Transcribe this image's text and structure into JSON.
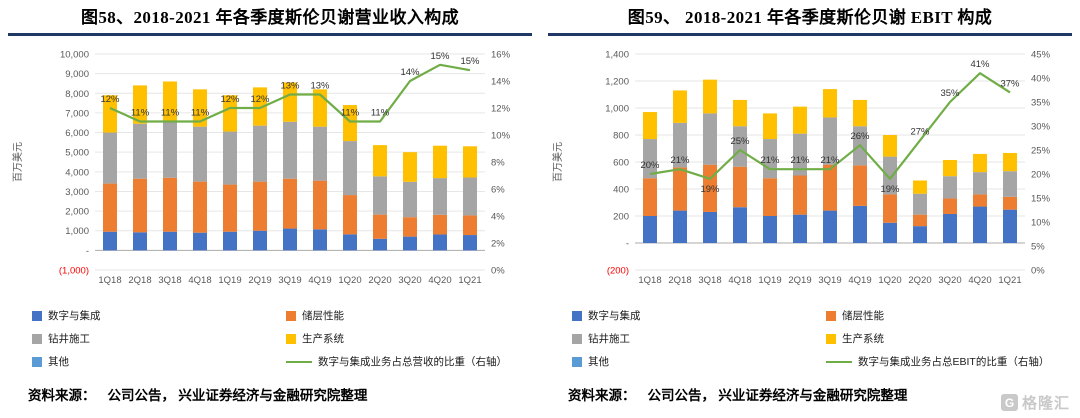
{
  "page": {
    "background": "#FFFFFF",
    "accent_rule_color": "#1F3864",
    "negative_color": "#FF0000",
    "watermark": {
      "icon_letter": "G",
      "text": "格隆汇"
    }
  },
  "sources": [
    {
      "label": "资料来源：",
      "text": "公司公告， 兴业证券经济与金融研究院整理"
    },
    {
      "label": "资料来源：",
      "text": "公司公告， 兴业证券经济与金融研究院整理"
    }
  ],
  "chart_data": [
    {
      "type": "bar",
      "subtype": "stacked-bars-with-line",
      "title": "图58、2018-2021 年各季度斯伦贝谢营业收入构成",
      "ylabel": "百万美元",
      "categories": [
        "1Q18",
        "2Q18",
        "3Q18",
        "4Q18",
        "1Q19",
        "2Q19",
        "3Q19",
        "4Q19",
        "1Q20",
        "2Q20",
        "3Q20",
        "4Q20",
        "1Q21"
      ],
      "series": [
        {
          "name": "数字与集成",
          "color": "#4472C4",
          "values": [
            950,
            920,
            950,
            900,
            950,
            1000,
            1110,
            1070,
            816,
            590,
            700,
            810,
            780
          ]
        },
        {
          "name": "储层性能",
          "color": "#ED7D31",
          "values": [
            2450,
            2730,
            2750,
            2600,
            2400,
            2500,
            2540,
            2480,
            2000,
            1230,
            990,
            1000,
            1000
          ]
        },
        {
          "name": "钻井施工",
          "color": "#A5A5A5",
          "values": [
            2600,
            2800,
            2900,
            2800,
            2700,
            2850,
            2900,
            2750,
            2750,
            1950,
            1800,
            1870,
            1930
          ]
        },
        {
          "name": "生产系统",
          "color": "#FFC000",
          "values": [
            1900,
            1950,
            2000,
            1900,
            1850,
            1950,
            2000,
            1900,
            1834,
            1590,
            1510,
            1650,
            1590
          ]
        }
      ],
      "line": {
        "name": "数字与集成业务占总营收的比重（右轴）",
        "color": "#70AD47",
        "axis": "right",
        "values": [
          12,
          11,
          11,
          11,
          12,
          12,
          13,
          13,
          11,
          11,
          14,
          15.2,
          14.8
        ],
        "labels": [
          "12%",
          "11%",
          "11%",
          "11%",
          "12%",
          "12%",
          "13%",
          "13%",
          "11%",
          "11%",
          "14%",
          "15%",
          "15%"
        ],
        "labels_below": []
      },
      "legend": [
        {
          "label": "数字与集成",
          "color": "#4472C4",
          "type": "square"
        },
        {
          "label": "储层性能",
          "color": "#ED7D31",
          "type": "square"
        },
        {
          "label": "钻井施工",
          "color": "#A5A5A5",
          "type": "square"
        },
        {
          "label": "生产系统",
          "color": "#FFC000",
          "type": "square"
        },
        {
          "label": "其他",
          "color": "#5B9BD5",
          "type": "square"
        },
        {
          "label": "数字与集成业务占总营收的比重（右轴）",
          "color": "#70AD47",
          "type": "line"
        }
      ],
      "left_axis": {
        "min": -1000,
        "max": 10000,
        "step": 1000,
        "tick_labels": [
          "10,000",
          "9,000",
          "8,000",
          "7,000",
          "6,000",
          "5,000",
          "4,000",
          "3,000",
          "2,000",
          "1,000",
          "-",
          "(1,000)"
        ]
      },
      "right_axis": {
        "min": 0,
        "max": 16,
        "step": 2,
        "tick_labels": [
          "16%",
          "14%",
          "12%",
          "10%",
          "8%",
          "6%",
          "4%",
          "2%",
          "0%"
        ]
      },
      "grid": true,
      "legend_position": "bottom"
    },
    {
      "type": "bar",
      "subtype": "stacked-bars-with-line",
      "title": "图59、 2018-2021 年各季度斯伦贝谢 EBIT 构成",
      "ylabel": "百万美元",
      "categories": [
        "1Q18",
        "2Q18",
        "3Q18",
        "4Q18",
        "1Q19",
        "2Q19",
        "3Q19",
        "4Q19",
        "1Q20",
        "2Q20",
        "3Q20",
        "4Q20",
        "1Q21"
      ],
      "series": [
        {
          "name": "数字与集成",
          "color": "#4472C4",
          "values": [
            200,
            240,
            230,
            265,
            200,
            210,
            240,
            275,
            150,
            125,
            215,
            270,
            247
          ]
        },
        {
          "name": "储层性能",
          "color": "#ED7D31",
          "values": [
            280,
            320,
            350,
            300,
            280,
            290,
            340,
            300,
            210,
            85,
            115,
            90,
            95
          ]
        },
        {
          "name": "钻井施工",
          "color": "#A5A5A5",
          "values": [
            290,
            330,
            380,
            300,
            290,
            310,
            350,
            290,
            280,
            155,
            165,
            165,
            190
          ]
        },
        {
          "name": "生产系统",
          "color": "#FFC000",
          "values": [
            200,
            240,
            250,
            195,
            190,
            200,
            210,
            195,
            160,
            98,
            120,
            135,
            135
          ]
        }
      ],
      "line": {
        "name": "数字与集成业务占总EBIT的比重（右轴）",
        "color": "#70AD47",
        "axis": "right",
        "values": [
          20,
          21,
          19,
          25,
          21,
          21,
          21,
          26,
          19,
          27,
          35,
          41,
          37
        ],
        "labels": [
          "20%",
          "21%",
          "19%",
          "25%",
          "21%",
          "21%",
          "21%",
          "26%",
          "19%",
          "27%",
          "35%",
          "41%",
          "37%"
        ],
        "labels_below": [
          2,
          8
        ]
      },
      "legend": [
        {
          "label": "数字与集成",
          "color": "#4472C4",
          "type": "square"
        },
        {
          "label": "储层性能",
          "color": "#ED7D31",
          "type": "square"
        },
        {
          "label": "钻井施工",
          "color": "#A5A5A5",
          "type": "square"
        },
        {
          "label": "生产系统",
          "color": "#FFC000",
          "type": "square"
        },
        {
          "label": "其他",
          "color": "#5B9BD5",
          "type": "square"
        },
        {
          "label": "数字与集成业务占总EBIT的比重（右轴）",
          "color": "#70AD47",
          "type": "line"
        }
      ],
      "left_axis": {
        "min": -200,
        "max": 1400,
        "step": 200,
        "tick_labels": [
          "1,400",
          "1,200",
          "1,000",
          "800",
          "600",
          "400",
          "200",
          "-",
          "(200)"
        ]
      },
      "right_axis": {
        "min": 0,
        "max": 45,
        "step": 5,
        "tick_labels": [
          "45%",
          "40%",
          "35%",
          "30%",
          "25%",
          "20%",
          "15%",
          "10%",
          "5%",
          "0%"
        ]
      },
      "grid": true,
      "legend_position": "bottom"
    }
  ]
}
